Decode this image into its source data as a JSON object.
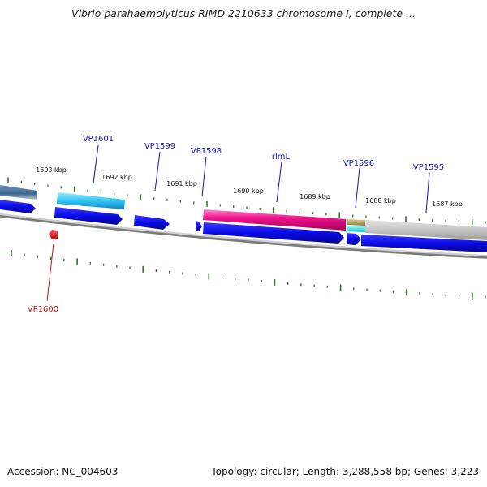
{
  "title": "Vibrio parahaemolyticus RIMD 2210633 chromosome I, complete ...",
  "footer": {
    "accession": "Accession: NC_004603",
    "stats": "Topology: circular; Length: 3,288,558 bp; Genes: 3,223"
  },
  "colors": {
    "gene_label": "#1010c8",
    "gene_label_reverse": "#d01010",
    "tick": "#2a7a20",
    "backbone": "#7a7a7a",
    "cds": "#1010e6"
  },
  "scale_labels": [
    "1693 kbp",
    "1692 kbp",
    "1691 kbp",
    "1690 kbp",
    "1689 kbp",
    "1688 kbp",
    "1687 kbp"
  ],
  "genes": [
    {
      "label": "VP1601",
      "strand": "forward",
      "color": "#1010c8"
    },
    {
      "label": "VP1600",
      "strand": "reverse",
      "color": "#d01010"
    },
    {
      "label": "VP1599",
      "strand": "forward",
      "color": "#1010c8"
    },
    {
      "label": "VP1598",
      "strand": "forward",
      "color": "#1010c8"
    },
    {
      "label": "rlmL",
      "strand": "forward",
      "color": "#1010c8"
    },
    {
      "label": "VP1596",
      "strand": "forward",
      "color": "#1010c8"
    },
    {
      "label": "VP1595",
      "strand": "forward",
      "color": "#1010c8"
    }
  ]
}
